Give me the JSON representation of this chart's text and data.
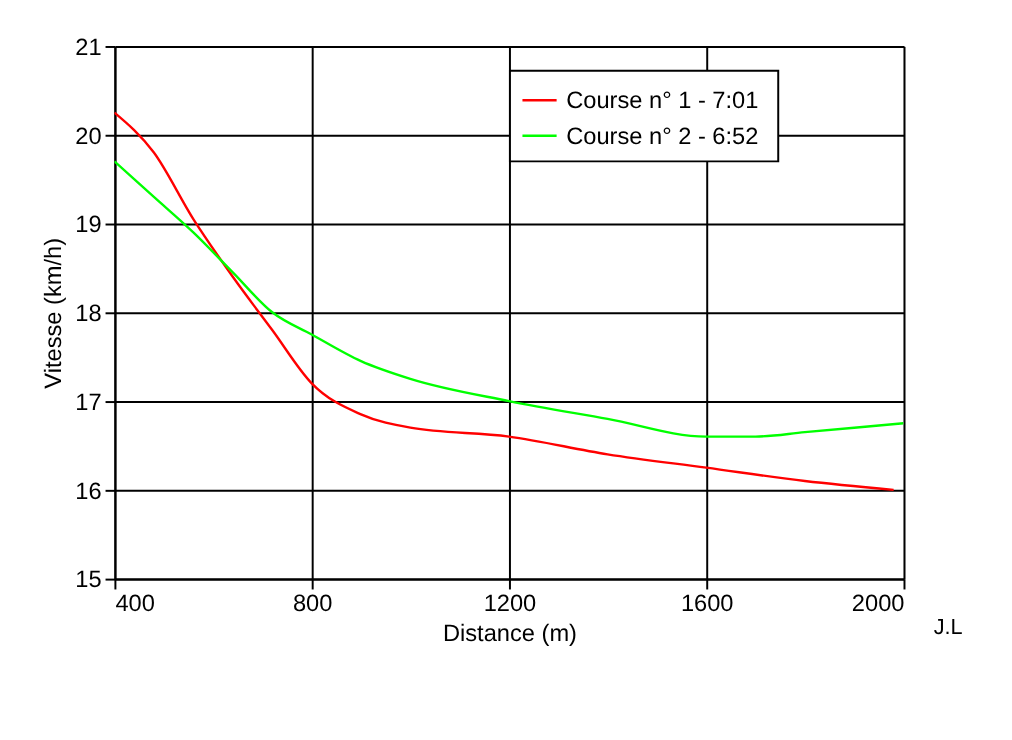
{
  "chart_data": {
    "type": "line",
    "xlabel": "Distance (m)",
    "ylabel": "Vitesse (km/h)",
    "xlim": [
      400,
      2000
    ],
    "xticks": [
      400,
      800,
      1200,
      1600,
      2000
    ],
    "ylim": [
      15,
      21
    ],
    "yticks": [
      15,
      16,
      17,
      18,
      19,
      20,
      21
    ],
    "grid": true,
    "legend": "top right",
    "marker": "none",
    "line_style": "solid",
    "annotations": [
      "J.L"
    ],
    "series": [
      {
        "name": "Course n° 1 -  7:01",
        "color": "#ff0000",
        "x": [
          400,
          480,
          560,
          640,
          720,
          800,
          900,
          1000,
          1200,
          1400,
          1600,
          1800,
          1980
        ],
        "values": [
          20.25,
          19.8,
          19.05,
          18.4,
          17.8,
          17.2,
          16.85,
          16.7,
          16.6,
          16.4,
          16.25,
          16.1,
          16.0
        ]
      },
      {
        "name": "Course n° 2 -  6:52",
        "color": "#00ff00",
        "x": [
          400,
          480,
          560,
          640,
          720,
          800,
          900,
          1000,
          1200,
          1400,
          1600,
          1700,
          1800,
          2000
        ],
        "values": [
          19.7,
          19.3,
          18.9,
          18.45,
          18.0,
          17.75,
          17.45,
          17.25,
          17.0,
          16.8,
          16.6,
          16.6,
          16.65,
          16.75
        ]
      }
    ]
  }
}
